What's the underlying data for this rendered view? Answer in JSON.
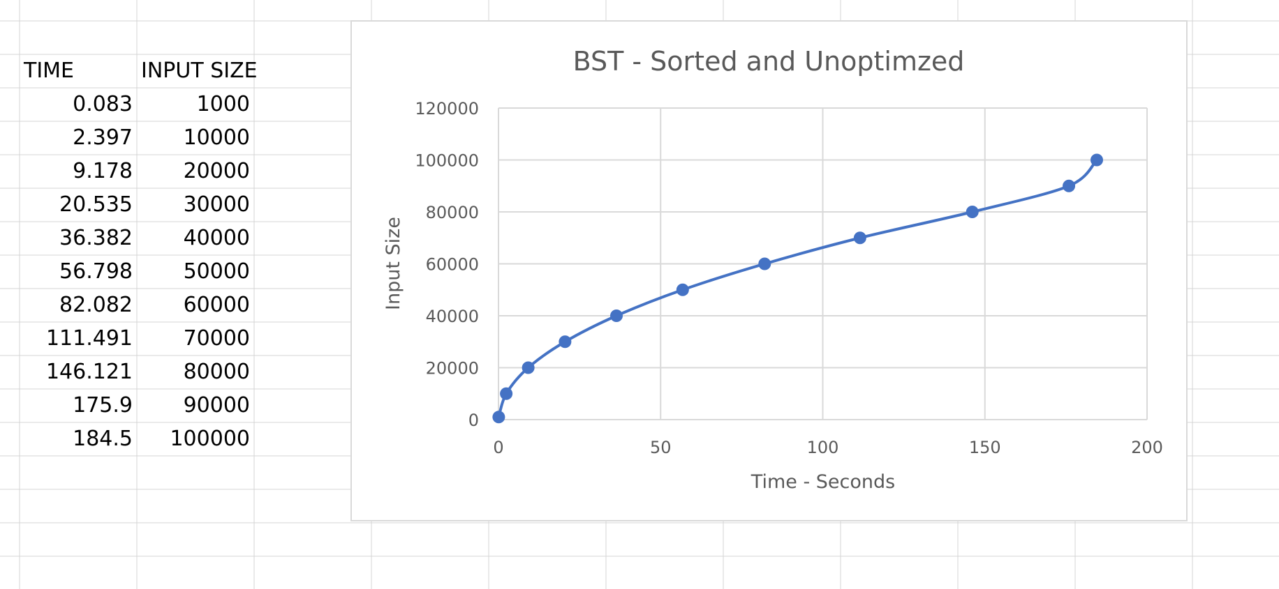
{
  "sheet": {
    "headers": {
      "time": "TIME",
      "input_size": "INPUT SIZE"
    },
    "rows": [
      {
        "time": "0.083",
        "input_size": "1000"
      },
      {
        "time": "2.397",
        "input_size": "10000"
      },
      {
        "time": "9.178",
        "input_size": "20000"
      },
      {
        "time": "20.535",
        "input_size": "30000"
      },
      {
        "time": "36.382",
        "input_size": "40000"
      },
      {
        "time": "56.798",
        "input_size": "50000"
      },
      {
        "time": "82.082",
        "input_size": "60000"
      },
      {
        "time": "111.491",
        "input_size": "70000"
      },
      {
        "time": "146.121",
        "input_size": "80000"
      },
      {
        "time": "175.9",
        "input_size": "90000"
      },
      {
        "time": "184.5",
        "input_size": "100000"
      }
    ]
  },
  "chart_data": {
    "type": "scatter",
    "title": "BST - Sorted and Unoptimzed",
    "xlabel": "Time - Seconds",
    "ylabel": "Input Size",
    "xlim": [
      0,
      200
    ],
    "ylim": [
      0,
      120000
    ],
    "xticks": [
      "0",
      "50",
      "100",
      "150",
      "200"
    ],
    "yticks": [
      "0",
      "20000",
      "40000",
      "60000",
      "80000",
      "100000",
      "120000"
    ],
    "grid": true,
    "legend": "none",
    "series_color": "#4472c4",
    "series": [
      {
        "x": [
          0.083,
          2.397,
          9.178,
          20.535,
          36.382,
          56.798,
          82.082,
          111.491,
          146.121,
          175.9,
          184.5
        ],
        "y": [
          1000,
          10000,
          20000,
          30000,
          40000,
          50000,
          60000,
          70000,
          80000,
          90000,
          100000
        ]
      }
    ]
  }
}
